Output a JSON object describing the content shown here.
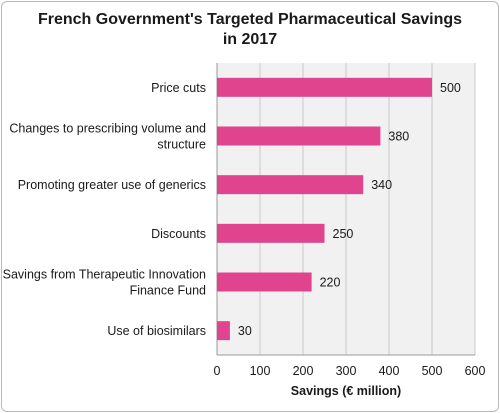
{
  "chart_data": {
    "type": "bar",
    "orientation": "horizontal",
    "title_lines": [
      "French Government's Targeted Pharmaceutical Savings",
      "in 2017"
    ],
    "categories": [
      [
        "Price cuts"
      ],
      [
        "Changes to prescribing volume and",
        "structure"
      ],
      [
        "Promoting greater use of generics"
      ],
      [
        "Discounts"
      ],
      [
        "Savings from Therapeutic Innovation",
        "Finance Fund"
      ],
      [
        "Use of biosimilars"
      ]
    ],
    "values": [
      500,
      380,
      340,
      250,
      220,
      30
    ],
    "xlabel": "Savings (€ million)",
    "xlim": [
      0,
      600
    ],
    "xticks": [
      0,
      100,
      200,
      300,
      400,
      500,
      600
    ],
    "grid": true,
    "colors": {
      "bar": "#e0448f",
      "plot_bg": "#f1f1f1",
      "grid": "#c9c9c9"
    }
  }
}
